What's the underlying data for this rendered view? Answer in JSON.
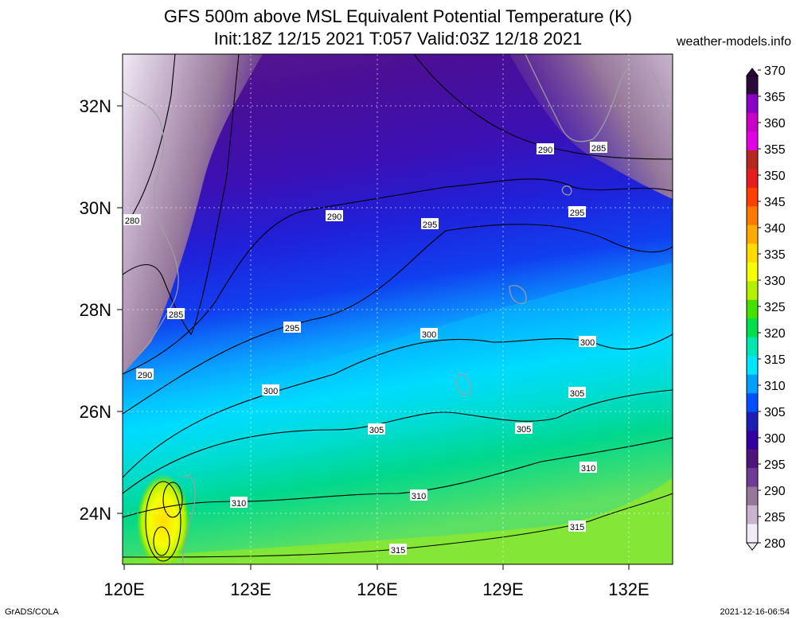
{
  "title": {
    "line1": "GFS 500m above MSL Equivalent Potential Temperature (K)",
    "line2": "Init:18Z 12/15 2021 T:057 Valid:03Z 12/18 2021"
  },
  "website": "weather-models.info",
  "footer": {
    "left": "GrADS/COLA",
    "right": "2021-12-16-06:54"
  },
  "map": {
    "lon_ticks": [
      "120E",
      "123E",
      "126E",
      "129E",
      "132E"
    ],
    "lat_ticks": [
      "32N",
      "30N",
      "28N",
      "26N",
      "24N"
    ]
  },
  "colorbar": {
    "ticks": [
      "370",
      "365",
      "360",
      "355",
      "350",
      "345",
      "340",
      "335",
      "330",
      "325",
      "320",
      "315",
      "310",
      "305",
      "300",
      "295",
      "290",
      "285",
      "280"
    ],
    "colors": [
      "#2a0a3c",
      "#8c00c8",
      "#c800c8",
      "#e600e6",
      "#b4281e",
      "#e61e1e",
      "#ff4000",
      "#ff7800",
      "#ffaa00",
      "#ffdc00",
      "#f5ff00",
      "#b4f000",
      "#46e000",
      "#00e04c",
      "#00e6b4",
      "#00e6ff",
      "#00a0ff",
      "#0050ff",
      "#1e1eb4",
      "#3200a0",
      "#50147a",
      "#6e3c96",
      "#96789b",
      "#c8b4cd",
      "#f0ebf5"
    ]
  },
  "contour_labels": [
    {
      "text": "280"
    },
    {
      "text": "285"
    },
    {
      "text": "290"
    },
    {
      "text": "290"
    },
    {
      "text": "295"
    },
    {
      "text": "295"
    },
    {
      "text": "290"
    },
    {
      "text": "285"
    },
    {
      "text": "295"
    },
    {
      "text": "300"
    },
    {
      "text": "300"
    },
    {
      "text": "300"
    },
    {
      "text": "305"
    },
    {
      "text": "305"
    },
    {
      "text": "305"
    },
    {
      "text": "310"
    },
    {
      "text": "310"
    },
    {
      "text": "310"
    },
    {
      "text": "315"
    },
    {
      "text": "315"
    }
  ]
}
